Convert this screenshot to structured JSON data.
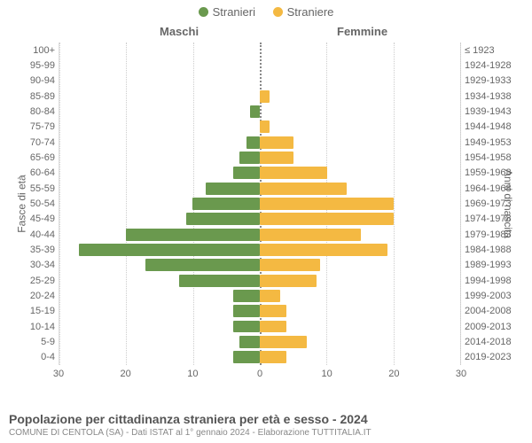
{
  "legend": {
    "male": {
      "label": "Stranieri",
      "color": "#6a994e"
    },
    "female": {
      "label": "Straniere",
      "color": "#f4b942"
    }
  },
  "column_headers": {
    "left": "Maschi",
    "right": "Femmine"
  },
  "axis_labels": {
    "left": "Fasce di età",
    "right": "Anni di nascita"
  },
  "x_axis": {
    "max": 30,
    "ticks_left": [
      30,
      20,
      10
    ],
    "ticks_right": [
      10,
      20,
      30
    ],
    "center_tick": 0
  },
  "grid": {
    "line_color": "#cccccc",
    "centerline_color": "#888888"
  },
  "bar_style": {
    "male_color": "#6a994e",
    "female_color": "#f4b942"
  },
  "rows": [
    {
      "age": "100+",
      "birth": "≤ 1923",
      "m": 0,
      "f": 0
    },
    {
      "age": "95-99",
      "birth": "1924-1928",
      "m": 0,
      "f": 0
    },
    {
      "age": "90-94",
      "birth": "1929-1933",
      "m": 0,
      "f": 0
    },
    {
      "age": "85-89",
      "birth": "1934-1938",
      "m": 0,
      "f": 1.5
    },
    {
      "age": "80-84",
      "birth": "1939-1943",
      "m": 1.5,
      "f": 0
    },
    {
      "age": "75-79",
      "birth": "1944-1948",
      "m": 0,
      "f": 1.5
    },
    {
      "age": "70-74",
      "birth": "1949-1953",
      "m": 2,
      "f": 5
    },
    {
      "age": "65-69",
      "birth": "1954-1958",
      "m": 3,
      "f": 5
    },
    {
      "age": "60-64",
      "birth": "1959-1963",
      "m": 4,
      "f": 10
    },
    {
      "age": "55-59",
      "birth": "1964-1968",
      "m": 8,
      "f": 13
    },
    {
      "age": "50-54",
      "birth": "1969-1973",
      "m": 10,
      "f": 20
    },
    {
      "age": "45-49",
      "birth": "1974-1978",
      "m": 11,
      "f": 20
    },
    {
      "age": "40-44",
      "birth": "1979-1983",
      "m": 20,
      "f": 15
    },
    {
      "age": "35-39",
      "birth": "1984-1988",
      "m": 27,
      "f": 19
    },
    {
      "age": "30-34",
      "birth": "1989-1993",
      "m": 17,
      "f": 9
    },
    {
      "age": "25-29",
      "birth": "1994-1998",
      "m": 12,
      "f": 8.5
    },
    {
      "age": "20-24",
      "birth": "1999-2003",
      "m": 4,
      "f": 3
    },
    {
      "age": "15-19",
      "birth": "2004-2008",
      "m": 4,
      "f": 4
    },
    {
      "age": "10-14",
      "birth": "2009-2013",
      "m": 4,
      "f": 4
    },
    {
      "age": "5-9",
      "birth": "2014-2018",
      "m": 3,
      "f": 7
    },
    {
      "age": "0-4",
      "birth": "2019-2023",
      "m": 4,
      "f": 4
    }
  ],
  "footer": {
    "title": "Popolazione per cittadinanza straniera per età e sesso - 2024",
    "subtitle": "COMUNE DI CENTOLA (SA) - Dati ISTAT al 1° gennaio 2024 - Elaborazione TUTTITALIA.IT"
  }
}
